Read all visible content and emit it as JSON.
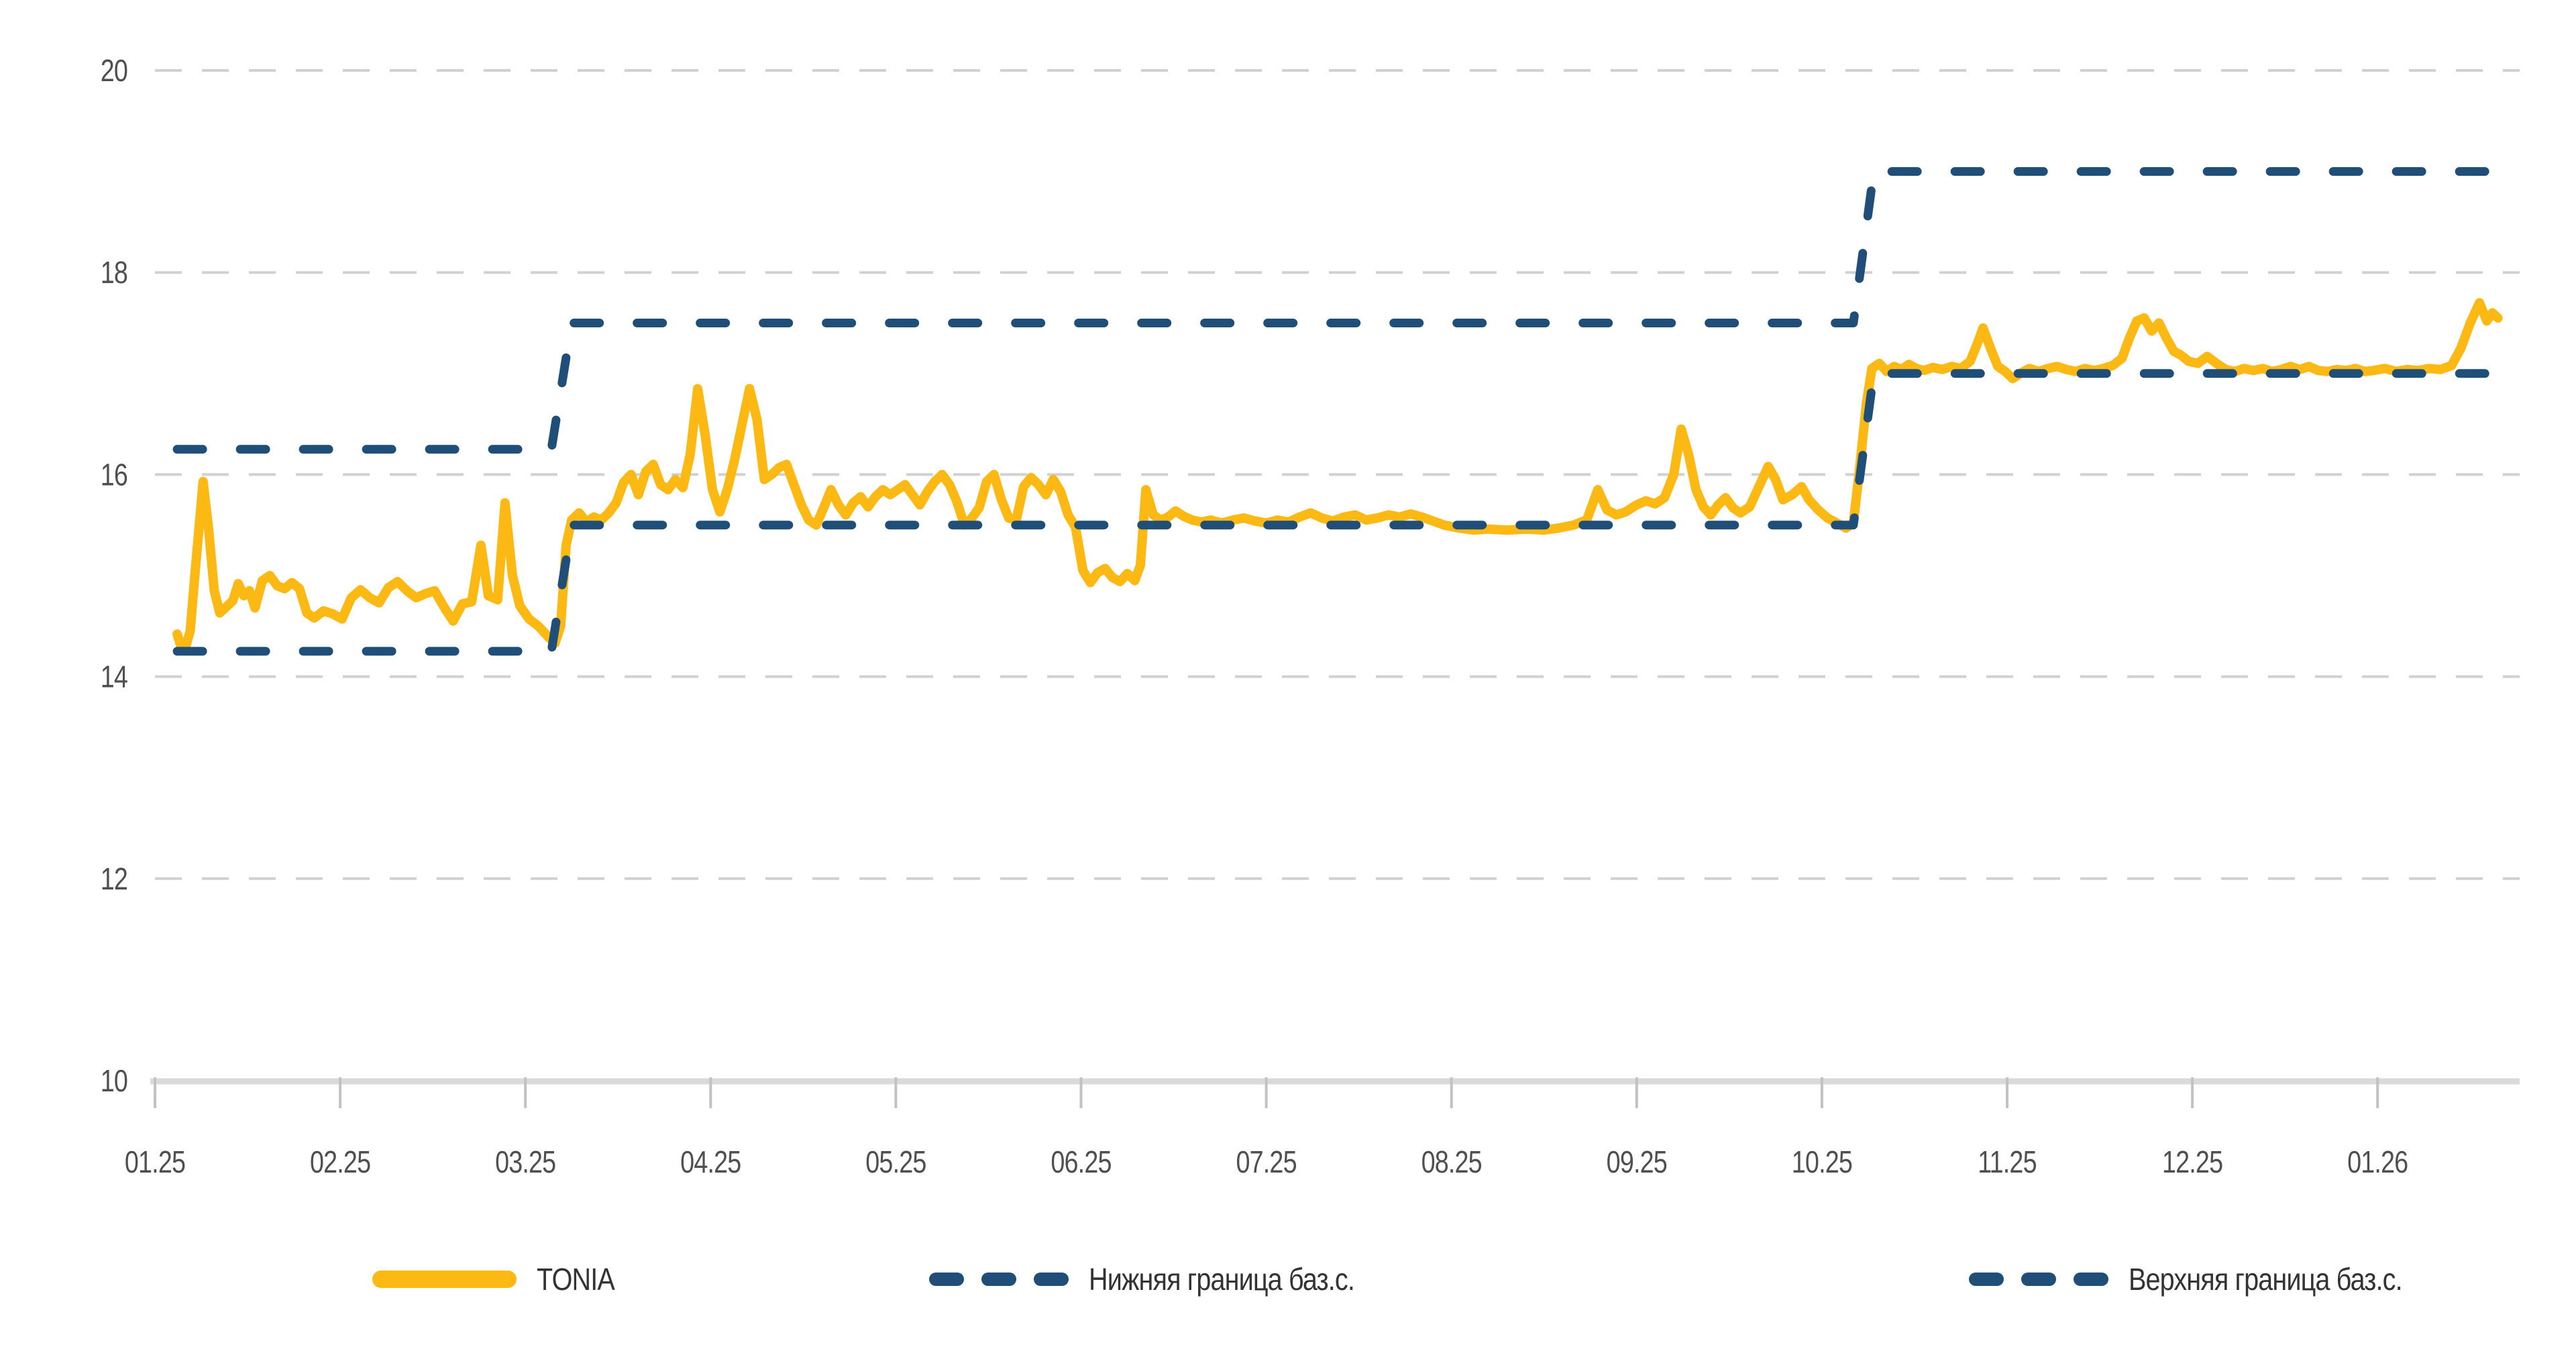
{
  "chart_data": {
    "type": "line",
    "title": "",
    "x_axis": {
      "tick_labels": [
        "01.25",
        "02.25",
        "03.25",
        "04.25",
        "05.25",
        "06.25",
        "07.25",
        "08.25",
        "09.25",
        "10.25",
        "11.25",
        "12.25",
        "01.26"
      ],
      "tick_positions": [
        1,
        2,
        3,
        4,
        5,
        6,
        7,
        8,
        9,
        10,
        11,
        12,
        13
      ]
    },
    "y_axis": {
      "tick_labels": [
        "10",
        "12",
        "14",
        "16",
        "18",
        "20"
      ],
      "tick_values": [
        10,
        12,
        14,
        16,
        18,
        20
      ],
      "range": [
        10,
        20
      ],
      "gridline_values": [
        12,
        14,
        16,
        18,
        20
      ]
    },
    "grid": "dashed horizontal",
    "legend_position": "bottom",
    "colors": {
      "tonia": "#FCB813",
      "boundary": "#1F4E79",
      "gridline": "#D1D1D1",
      "axis_line": "#DADADA",
      "tick": "#C2C2C2",
      "tick_label": "#4F4F4F",
      "legend_text": "#333333"
    },
    "series": [
      {
        "name": "TONIA",
        "color": "#FCB813",
        "style": "solid",
        "width": 14,
        "points": [
          [
            1.12,
            14.42
          ],
          [
            1.14,
            14.3
          ],
          [
            1.16,
            14.26
          ],
          [
            1.19,
            14.45
          ],
          [
            1.22,
            15.1
          ],
          [
            1.26,
            15.93
          ],
          [
            1.29,
            15.45
          ],
          [
            1.32,
            14.85
          ],
          [
            1.35,
            14.63
          ],
          [
            1.38,
            14.68
          ],
          [
            1.42,
            14.75
          ],
          [
            1.45,
            14.92
          ],
          [
            1.48,
            14.8
          ],
          [
            1.51,
            14.85
          ],
          [
            1.54,
            14.68
          ],
          [
            1.58,
            14.95
          ],
          [
            1.62,
            15.0
          ],
          [
            1.66,
            14.9
          ],
          [
            1.7,
            14.87
          ],
          [
            1.74,
            14.93
          ],
          [
            1.78,
            14.87
          ],
          [
            1.82,
            14.63
          ],
          [
            1.86,
            14.58
          ],
          [
            1.91,
            14.65
          ],
          [
            1.96,
            14.62
          ],
          [
            2.01,
            14.57
          ],
          [
            2.06,
            14.78
          ],
          [
            2.11,
            14.86
          ],
          [
            2.16,
            14.78
          ],
          [
            2.21,
            14.73
          ],
          [
            2.26,
            14.88
          ],
          [
            2.31,
            14.94
          ],
          [
            2.36,
            14.85
          ],
          [
            2.41,
            14.78
          ],
          [
            2.46,
            14.82
          ],
          [
            2.51,
            14.85
          ],
          [
            2.56,
            14.69
          ],
          [
            2.61,
            14.55
          ],
          [
            2.66,
            14.72
          ],
          [
            2.71,
            14.74
          ],
          [
            2.76,
            15.3
          ],
          [
            2.8,
            14.8
          ],
          [
            2.85,
            14.76
          ],
          [
            2.89,
            15.72
          ],
          [
            2.93,
            15.0
          ],
          [
            2.97,
            14.7
          ],
          [
            3.02,
            14.57
          ],
          [
            3.07,
            14.5
          ],
          [
            3.12,
            14.4
          ],
          [
            3.16,
            14.33
          ],
          [
            3.19,
            14.5
          ],
          [
            3.22,
            15.3
          ],
          [
            3.25,
            15.55
          ],
          [
            3.29,
            15.62
          ],
          [
            3.33,
            15.53
          ],
          [
            3.37,
            15.58
          ],
          [
            3.41,
            15.55
          ],
          [
            3.45,
            15.62
          ],
          [
            3.49,
            15.72
          ],
          [
            3.53,
            15.92
          ],
          [
            3.57,
            16.0
          ],
          [
            3.61,
            15.8
          ],
          [
            3.65,
            16.03
          ],
          [
            3.69,
            16.1
          ],
          [
            3.73,
            15.9
          ],
          [
            3.77,
            15.85
          ],
          [
            3.81,
            15.95
          ],
          [
            3.85,
            15.87
          ],
          [
            3.89,
            16.2
          ],
          [
            3.93,
            16.85
          ],
          [
            3.97,
            16.4
          ],
          [
            4.01,
            15.85
          ],
          [
            4.05,
            15.63
          ],
          [
            4.09,
            15.85
          ],
          [
            4.13,
            16.15
          ],
          [
            4.17,
            16.5
          ],
          [
            4.21,
            16.85
          ],
          [
            4.25,
            16.55
          ],
          [
            4.29,
            15.95
          ],
          [
            4.33,
            16.0
          ],
          [
            4.37,
            16.07
          ],
          [
            4.41,
            16.1
          ],
          [
            4.45,
            15.9
          ],
          [
            4.49,
            15.7
          ],
          [
            4.53,
            15.55
          ],
          [
            4.57,
            15.5
          ],
          [
            4.61,
            15.67
          ],
          [
            4.65,
            15.85
          ],
          [
            4.69,
            15.7
          ],
          [
            4.73,
            15.6
          ],
          [
            4.77,
            15.72
          ],
          [
            4.81,
            15.78
          ],
          [
            4.85,
            15.68
          ],
          [
            4.89,
            15.78
          ],
          [
            4.93,
            15.85
          ],
          [
            4.97,
            15.8
          ],
          [
            5.01,
            15.85
          ],
          [
            5.05,
            15.9
          ],
          [
            5.09,
            15.8
          ],
          [
            5.13,
            15.7
          ],
          [
            5.17,
            15.83
          ],
          [
            5.21,
            15.93
          ],
          [
            5.25,
            16.0
          ],
          [
            5.29,
            15.9
          ],
          [
            5.33,
            15.73
          ],
          [
            5.37,
            15.5
          ],
          [
            5.41,
            15.57
          ],
          [
            5.45,
            15.67
          ],
          [
            5.49,
            15.93
          ],
          [
            5.53,
            16.0
          ],
          [
            5.57,
            15.75
          ],
          [
            5.61,
            15.57
          ],
          [
            5.65,
            15.55
          ],
          [
            5.69,
            15.88
          ],
          [
            5.73,
            15.97
          ],
          [
            5.77,
            15.9
          ],
          [
            5.81,
            15.8
          ],
          [
            5.85,
            15.95
          ],
          [
            5.89,
            15.83
          ],
          [
            5.93,
            15.6
          ],
          [
            5.97,
            15.48
          ],
          [
            6.01,
            15.05
          ],
          [
            6.05,
            14.93
          ],
          [
            6.09,
            15.03
          ],
          [
            6.13,
            15.07
          ],
          [
            6.17,
            14.98
          ],
          [
            6.21,
            14.94
          ],
          [
            6.25,
            15.02
          ],
          [
            6.29,
            14.95
          ],
          [
            6.32,
            15.1
          ],
          [
            6.35,
            15.85
          ],
          [
            6.39,
            15.6
          ],
          [
            6.43,
            15.55
          ],
          [
            6.47,
            15.58
          ],
          [
            6.51,
            15.64
          ],
          [
            6.55,
            15.59
          ],
          [
            6.6,
            15.55
          ],
          [
            6.65,
            15.53
          ],
          [
            6.7,
            15.55
          ],
          [
            6.76,
            15.52
          ],
          [
            6.82,
            15.55
          ],
          [
            6.88,
            15.57
          ],
          [
            6.94,
            15.54
          ],
          [
            7.0,
            15.52
          ],
          [
            7.06,
            15.55
          ],
          [
            7.12,
            15.53
          ],
          [
            7.18,
            15.58
          ],
          [
            7.24,
            15.62
          ],
          [
            7.3,
            15.57
          ],
          [
            7.36,
            15.54
          ],
          [
            7.42,
            15.58
          ],
          [
            7.48,
            15.6
          ],
          [
            7.54,
            15.55
          ],
          [
            7.6,
            15.57
          ],
          [
            7.66,
            15.6
          ],
          [
            7.72,
            15.58
          ],
          [
            7.78,
            15.61
          ],
          [
            7.84,
            15.58
          ],
          [
            7.9,
            15.54
          ],
          [
            7.96,
            15.5
          ],
          [
            8.04,
            15.47
          ],
          [
            8.12,
            15.45
          ],
          [
            8.2,
            15.46
          ],
          [
            8.3,
            15.45
          ],
          [
            8.4,
            15.46
          ],
          [
            8.5,
            15.45
          ],
          [
            8.58,
            15.47
          ],
          [
            8.66,
            15.5
          ],
          [
            8.73,
            15.55
          ],
          [
            8.79,
            15.85
          ],
          [
            8.84,
            15.65
          ],
          [
            8.89,
            15.6
          ],
          [
            8.94,
            15.63
          ],
          [
            9.0,
            15.7
          ],
          [
            9.05,
            15.74
          ],
          [
            9.1,
            15.71
          ],
          [
            9.15,
            15.77
          ],
          [
            9.2,
            16.0
          ],
          [
            9.24,
            16.45
          ],
          [
            9.28,
            16.2
          ],
          [
            9.32,
            15.85
          ],
          [
            9.36,
            15.68
          ],
          [
            9.4,
            15.6
          ],
          [
            9.44,
            15.7
          ],
          [
            9.48,
            15.77
          ],
          [
            9.52,
            15.67
          ],
          [
            9.56,
            15.62
          ],
          [
            9.61,
            15.68
          ],
          [
            9.66,
            15.88
          ],
          [
            9.71,
            16.08
          ],
          [
            9.75,
            15.95
          ],
          [
            9.79,
            15.75
          ],
          [
            9.84,
            15.8
          ],
          [
            9.89,
            15.88
          ],
          [
            9.93,
            15.75
          ],
          [
            9.98,
            15.65
          ],
          [
            10.03,
            15.57
          ],
          [
            10.08,
            15.52
          ],
          [
            10.13,
            15.47
          ],
          [
            10.17,
            15.52
          ],
          [
            10.2,
            16.0
          ],
          [
            10.24,
            16.7
          ],
          [
            10.27,
            17.05
          ],
          [
            10.31,
            17.1
          ],
          [
            10.35,
            17.02
          ],
          [
            10.39,
            17.07
          ],
          [
            10.43,
            17.04
          ],
          [
            10.47,
            17.09
          ],
          [
            10.51,
            17.05
          ],
          [
            10.55,
            17.03
          ],
          [
            10.6,
            17.06
          ],
          [
            10.65,
            17.04
          ],
          [
            10.7,
            17.07
          ],
          [
            10.75,
            17.05
          ],
          [
            10.8,
            17.12
          ],
          [
            10.84,
            17.3
          ],
          [
            10.87,
            17.45
          ],
          [
            10.91,
            17.25
          ],
          [
            10.95,
            17.07
          ],
          [
            10.99,
            17.02
          ],
          [
            11.03,
            16.95
          ],
          [
            11.07,
            17.0
          ],
          [
            11.12,
            17.05
          ],
          [
            11.17,
            17.02
          ],
          [
            11.22,
            17.05
          ],
          [
            11.27,
            17.07
          ],
          [
            11.32,
            17.04
          ],
          [
            11.37,
            17.02
          ],
          [
            11.42,
            17.05
          ],
          [
            11.47,
            17.03
          ],
          [
            11.52,
            17.05
          ],
          [
            11.57,
            17.08
          ],
          [
            11.62,
            17.15
          ],
          [
            11.66,
            17.35
          ],
          [
            11.7,
            17.52
          ],
          [
            11.74,
            17.55
          ],
          [
            11.78,
            17.42
          ],
          [
            11.82,
            17.5
          ],
          [
            11.86,
            17.35
          ],
          [
            11.9,
            17.22
          ],
          [
            11.94,
            17.18
          ],
          [
            11.98,
            17.12
          ],
          [
            12.03,
            17.1
          ],
          [
            12.08,
            17.17
          ],
          [
            12.13,
            17.1
          ],
          [
            12.18,
            17.04
          ],
          [
            12.23,
            17.02
          ],
          [
            12.28,
            17.05
          ],
          [
            12.33,
            17.03
          ],
          [
            12.38,
            17.05
          ],
          [
            12.43,
            17.02
          ],
          [
            12.48,
            17.04
          ],
          [
            12.53,
            17.07
          ],
          [
            12.58,
            17.04
          ],
          [
            12.63,
            17.07
          ],
          [
            12.68,
            17.03
          ],
          [
            12.73,
            17.02
          ],
          [
            12.78,
            17.04
          ],
          [
            12.83,
            17.03
          ],
          [
            12.88,
            17.05
          ],
          [
            12.93,
            17.02
          ],
          [
            12.98,
            17.03
          ],
          [
            13.04,
            17.05
          ],
          [
            13.1,
            17.02
          ],
          [
            13.16,
            17.04
          ],
          [
            13.22,
            17.03
          ],
          [
            13.28,
            17.05
          ],
          [
            13.34,
            17.04
          ],
          [
            13.4,
            17.08
          ],
          [
            13.45,
            17.25
          ],
          [
            13.5,
            17.5
          ],
          [
            13.55,
            17.7
          ],
          [
            13.59,
            17.52
          ],
          [
            13.62,
            17.6
          ],
          [
            13.65,
            17.55
          ]
        ]
      },
      {
        "name": "Нижняя граница баз.с.",
        "color": "#1F4E79",
        "style": "dashed",
        "width": 13,
        "points": [
          [
            1.12,
            14.25
          ],
          [
            3.14,
            14.25
          ],
          [
            3.25,
            15.5
          ],
          [
            10.17,
            15.5
          ],
          [
            10.28,
            17.0
          ],
          [
            13.71,
            17.0
          ]
        ]
      },
      {
        "name": "Верхняя граница баз.с.",
        "color": "#1F4E79",
        "style": "dashed",
        "width": 13,
        "points": [
          [
            1.12,
            16.25
          ],
          [
            3.14,
            16.25
          ],
          [
            3.25,
            17.5
          ],
          [
            10.17,
            17.5
          ],
          [
            10.28,
            19.0
          ],
          [
            13.71,
            19.0
          ]
        ]
      }
    ],
    "legend": [
      {
        "label": "TONIA",
        "swatch": "solid-yellow"
      },
      {
        "label": "Нижняя граница баз.с.",
        "swatch": "dashed-navy"
      },
      {
        "label": "Верхняя граница баз.с.",
        "swatch": "dashed-navy"
      }
    ]
  }
}
